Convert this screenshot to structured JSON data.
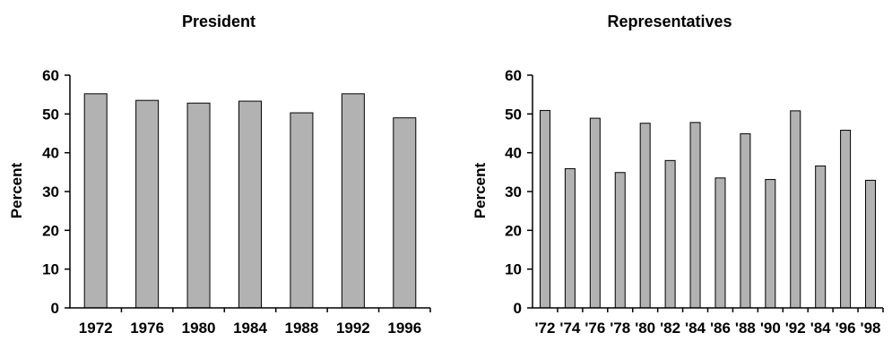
{
  "chart_data": [
    {
      "type": "bar",
      "title": "President",
      "ylabel": "Percent",
      "xlabel": "",
      "ylim": [
        0,
        60
      ],
      "yticks": [
        0,
        10,
        20,
        30,
        40,
        50,
        60
      ],
      "categories": [
        "1972",
        "1976",
        "1980",
        "1984",
        "1988",
        "1992",
        "1996"
      ],
      "values": [
        55.2,
        53.5,
        52.8,
        53.3,
        50.3,
        55.2,
        49.0
      ],
      "bar_color": "#b2b2b2",
      "grid": false
    },
    {
      "type": "bar",
      "title": "Representatives",
      "ylabel": "Percent",
      "xlabel": "",
      "ylim": [
        0,
        60
      ],
      "yticks": [
        0,
        10,
        20,
        30,
        40,
        50,
        60
      ],
      "categories": [
        "'72",
        "'74",
        "'76",
        "'78",
        "'80",
        "'82",
        "'84",
        "'86",
        "'88",
        "'90",
        "'92",
        "'84",
        "'96",
        "'98"
      ],
      "values": [
        50.9,
        35.9,
        48.9,
        34.9,
        47.6,
        38.0,
        47.8,
        33.5,
        44.9,
        33.1,
        50.8,
        36.6,
        45.8,
        32.9
      ],
      "bar_color": "#b2b2b2",
      "grid": false
    }
  ]
}
